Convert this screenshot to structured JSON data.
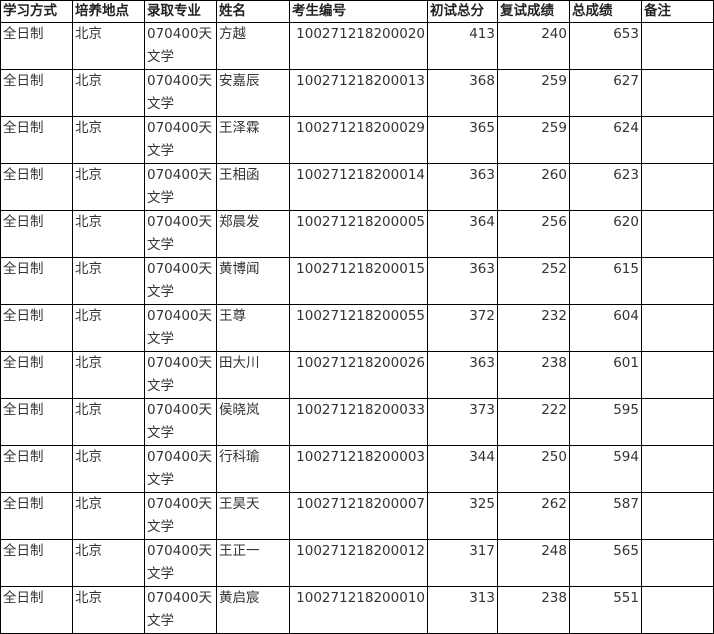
{
  "table": {
    "headers": [
      "学习方式",
      "培养地点",
      "录取专业",
      "姓名",
      "考生编号",
      "初试总分",
      "复试成绩",
      "总成绩",
      "备注"
    ],
    "rows": [
      [
        "全日制",
        "北京",
        "070400天文学",
        "方越",
        "100271218200020",
        "413",
        "240",
        "653",
        ""
      ],
      [
        "全日制",
        "北京",
        "070400天文学",
        "安嘉辰",
        "100271218200013",
        "368",
        "259",
        "627",
        ""
      ],
      [
        "全日制",
        "北京",
        "070400天文学",
        "王泽霖",
        "100271218200029",
        "365",
        "259",
        "624",
        ""
      ],
      [
        "全日制",
        "北京",
        "070400天文学",
        "王相函",
        "100271218200014",
        "363",
        "260",
        "623",
        ""
      ],
      [
        "全日制",
        "北京",
        "070400天文学",
        "郑晨发",
        "100271218200005",
        "364",
        "256",
        "620",
        ""
      ],
      [
        "全日制",
        "北京",
        "070400天文学",
        "黄博闻",
        "100271218200015",
        "363",
        "252",
        "615",
        ""
      ],
      [
        "全日制",
        "北京",
        "070400天文学",
        "王尊",
        "100271218200055",
        "372",
        "232",
        "604",
        ""
      ],
      [
        "全日制",
        "北京",
        "070400天文学",
        "田大川",
        "100271218200026",
        "363",
        "238",
        "601",
        ""
      ],
      [
        "全日制",
        "北京",
        "070400天文学",
        "侯晓岚",
        "100271218200033",
        "373",
        "222",
        "595",
        ""
      ],
      [
        "全日制",
        "北京",
        "070400天文学",
        "行科瑜",
        "100271218200003",
        "344",
        "250",
        "594",
        ""
      ],
      [
        "全日制",
        "北京",
        "070400天文学",
        "王昊天",
        "100271218200007",
        "325",
        "262",
        "587",
        ""
      ],
      [
        "全日制",
        "北京",
        "070400天文学",
        "王正一",
        "100271218200012",
        "317",
        "248",
        "565",
        ""
      ],
      [
        "全日制",
        "北京",
        "070400天文学",
        "黄启宸",
        "100271218200010",
        "313",
        "238",
        "551",
        ""
      ]
    ]
  }
}
